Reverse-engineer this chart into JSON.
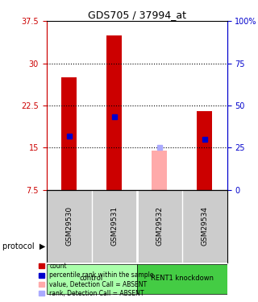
{
  "title": "GDS705 / 37994_at",
  "samples": [
    "GSM29530",
    "GSM29531",
    "GSM29532",
    "GSM29534"
  ],
  "bar_values": [
    27.5,
    35.0,
    null,
    21.5
  ],
  "bar_colors": [
    "#cc0000",
    "#cc0000",
    null,
    "#cc0000"
  ],
  "blue_marker_values": [
    17.0,
    20.5,
    null,
    16.5
  ],
  "blue_marker_pct": [
    42,
    48,
    null,
    40
  ],
  "absent_bar_value": 14.5,
  "absent_bar_color": "#ffaaaa",
  "absent_rank_value": 15.0,
  "absent_rank_color": "#aaaaff",
  "absent_sample_idx": 2,
  "ylim_left": [
    7.5,
    37.5
  ],
  "ylim_right": [
    0,
    100
  ],
  "yticks_left": [
    7.5,
    15.0,
    22.5,
    30.0,
    37.5
  ],
  "yticks_right": [
    0,
    25,
    50,
    75,
    100
  ],
  "ytick_labels_left": [
    "7.5",
    "15",
    "22.5",
    "30",
    "37.5"
  ],
  "ytick_labels_right": [
    "0",
    "25",
    "50",
    "75",
    "100%"
  ],
  "groups": [
    {
      "label": "control",
      "samples": [
        0,
        1
      ],
      "color": "#aaffaa"
    },
    {
      "label": "RENT1 knockdown",
      "samples": [
        2,
        3
      ],
      "color": "#44cc44"
    }
  ],
  "protocol_label": "protocol",
  "bar_width": 0.35,
  "plot_bg": "#ffffff",
  "grid_color": "#000000",
  "left_axis_color": "#cc0000",
  "right_axis_color": "#0000cc",
  "x_area_color": "#cccccc"
}
